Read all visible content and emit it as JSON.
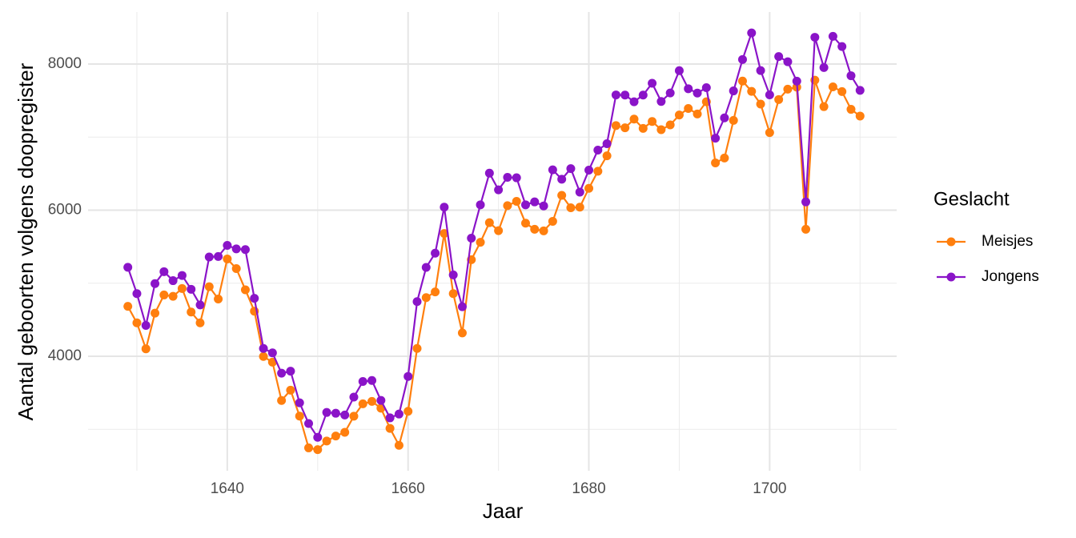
{
  "chart_data": {
    "type": "line",
    "xlabel": "Jaar",
    "ylabel": "Aantal geboorten volgens doopregister",
    "legend_title": "Geslacht",
    "legend_position": "right",
    "grid": true,
    "x": [
      1629,
      1630,
      1631,
      1632,
      1633,
      1634,
      1635,
      1636,
      1637,
      1638,
      1639,
      1640,
      1641,
      1642,
      1643,
      1644,
      1645,
      1646,
      1647,
      1648,
      1649,
      1650,
      1651,
      1652,
      1653,
      1654,
      1655,
      1656,
      1657,
      1658,
      1659,
      1660,
      1661,
      1662,
      1663,
      1664,
      1665,
      1666,
      1667,
      1668,
      1669,
      1670,
      1671,
      1672,
      1673,
      1674,
      1675,
      1676,
      1677,
      1678,
      1679,
      1680,
      1681,
      1682,
      1683,
      1684,
      1685,
      1686,
      1687,
      1688,
      1689,
      1690,
      1691,
      1692,
      1693,
      1694,
      1695,
      1696,
      1697,
      1698,
      1699,
      1700,
      1701,
      1702,
      1703,
      1704,
      1705,
      1706,
      1707,
      1708,
      1709,
      1710
    ],
    "series": [
      {
        "name": "Meisjes",
        "color": "#ff7f0e",
        "values": [
          4683,
          4457,
          4102,
          4590,
          4839,
          4820,
          4928,
          4605,
          4457,
          4952,
          4784,
          5332,
          5200,
          4910,
          4617,
          3997,
          3919,
          3395,
          3536,
          3181,
          2746,
          2722,
          2840,
          2908,
          2959,
          3179,
          3349,
          3382,
          3289,
          3013,
          2781,
          3247,
          4107,
          4803,
          4881,
          5681,
          4858,
          4319,
          5322,
          5560,
          5829,
          5719,
          6061,
          6120,
          5822,
          5738,
          5717,
          5847,
          6203,
          6033,
          6041,
          6299,
          6533,
          6744,
          7158,
          7127,
          7246,
          7119,
          7214,
          7101,
          7167,
          7302,
          7392,
          7316,
          7483,
          6647,
          6713,
          7229,
          7767,
          7626,
          7452,
          7061,
          7514,
          7656,
          7683,
          5738,
          7779,
          7417,
          7687,
          7623,
          7380,
          7288
        ]
      },
      {
        "name": "Jongens",
        "color": "#8a14c8",
        "values": [
          5218,
          4858,
          4422,
          4994,
          5158,
          5035,
          5106,
          4917,
          4703,
          5359,
          5366,
          5518,
          5470,
          5460,
          4793,
          4107,
          4047,
          3768,
          3796,
          3363,
          3079,
          2890,
          3231,
          3220,
          3196,
          3441,
          3655,
          3668,
          3396,
          3157,
          3209,
          3724,
          4748,
          5216,
          5411,
          6041,
          5114,
          4678,
          5616,
          6073,
          6506,
          6278,
          6449,
          6443,
          6073,
          6113,
          6058,
          6552,
          6423,
          6568,
          6247,
          6548,
          6822,
          6909,
          7577,
          7575,
          7484,
          7575,
          7737,
          7487,
          7604,
          7909,
          7662,
          7602,
          7676,
          6985,
          7263,
          7632,
          8062,
          8426,
          7911,
          7578,
          8102,
          8031,
          7765,
          6113,
          8366,
          7952,
          8379,
          8239,
          7840,
          7640
        ]
      }
    ],
    "xlim": [
      1624.6,
      1714.05
    ],
    "ylim": [
      2433,
      8712
    ],
    "xticks": [
      1640,
      1660,
      1680,
      1700
    ],
    "yticks": [
      4000,
      6000,
      8000
    ],
    "x_minor_grid": [
      1630,
      1650,
      1670,
      1690,
      1710
    ],
    "y_minor_grid": [
      3000,
      5000,
      7000
    ]
  }
}
